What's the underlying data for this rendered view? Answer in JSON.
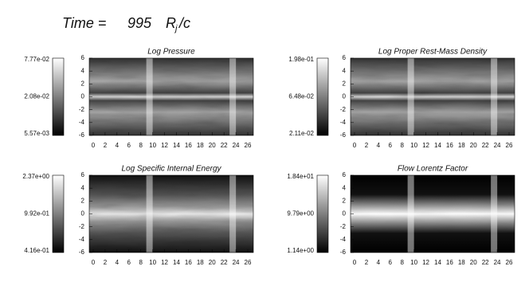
{
  "header": {
    "time_label": "Time =",
    "time_value": "995",
    "unit_base": "R",
    "unit_sub": "j",
    "unit_rest": "/c"
  },
  "axes": {
    "x_ticks": [
      "0",
      "2",
      "4",
      "6",
      "8",
      "10",
      "12",
      "14",
      "16",
      "18",
      "20",
      "22",
      "24",
      "26"
    ],
    "y_ticks": [
      "6",
      "4",
      "2",
      "0",
      "-2",
      "-4",
      "-6"
    ]
  },
  "panels": [
    {
      "title": "Log Pressure",
      "colorbar": [
        "7.77e-02",
        "2.08e-02",
        "5.57e-03"
      ]
    },
    {
      "title": "Log Proper Rest-Mass Density",
      "colorbar": [
        "1.98e-01",
        "6.48e-02",
        "2.11e-02"
      ]
    },
    {
      "title": "Log Specific Internal Energy",
      "colorbar": [
        "2.37e+00",
        "9.92e-01",
        "4.16e-01"
      ]
    },
    {
      "title": "Flow Lorentz Factor",
      "colorbar": [
        "1.84e+01",
        "9.79e+00",
        "1.14e+00"
      ]
    }
  ]
}
